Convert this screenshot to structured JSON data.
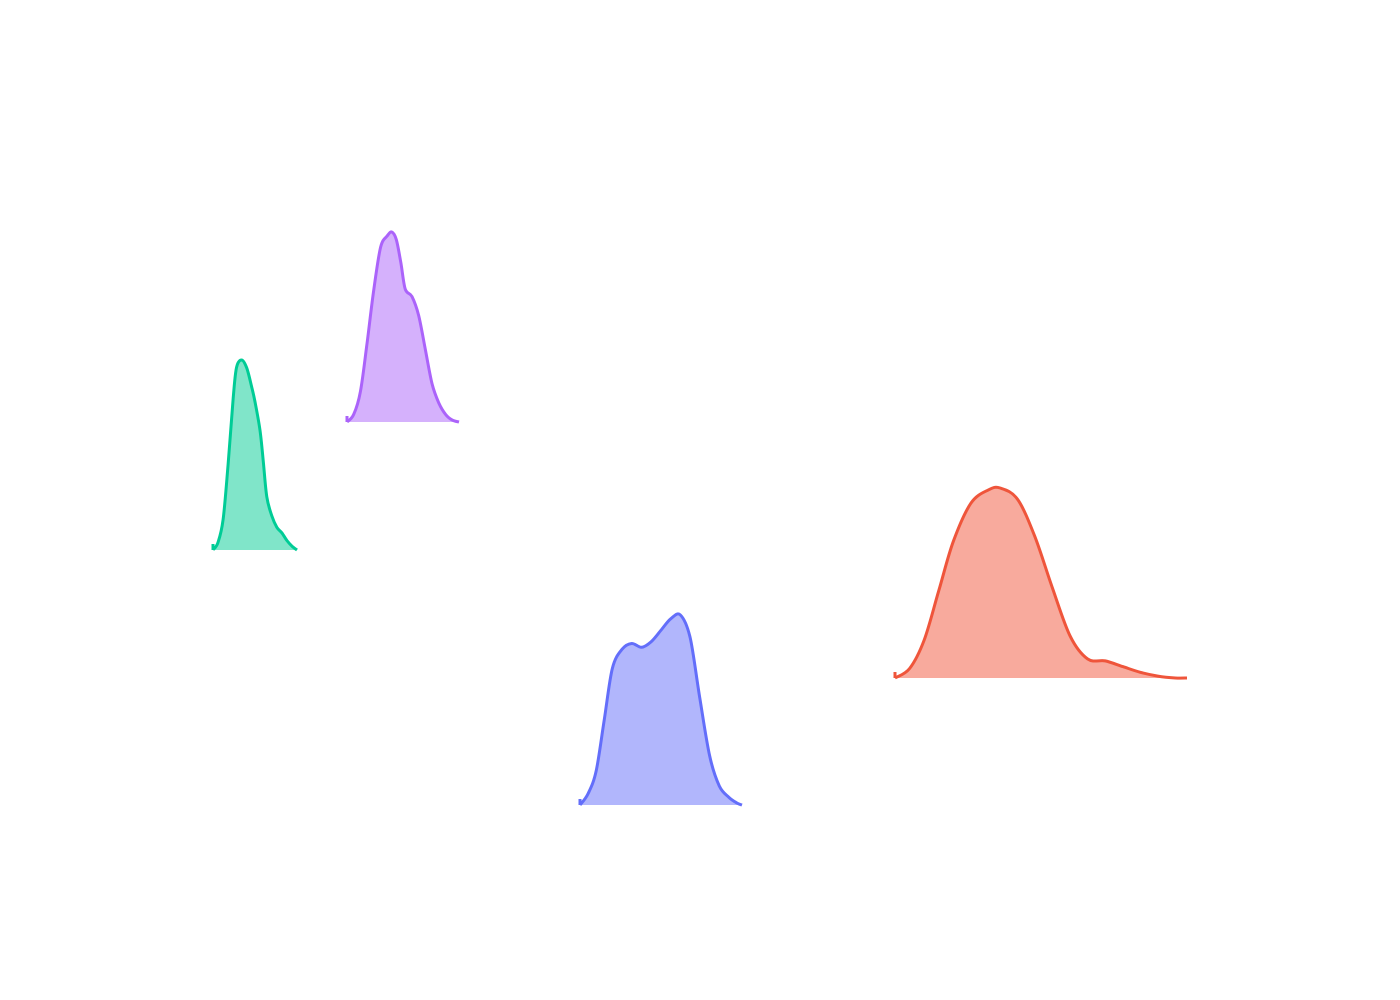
{
  "chart_data": {
    "type": "area",
    "title": "",
    "xlabel": "",
    "ylabel": "",
    "grid": false,
    "axes_visible": false,
    "series": [
      {
        "color": "#00cc96",
        "fill": "#80e5c9",
        "points": [
          [
            0.0,
            0.0
          ],
          [
            0.06,
            0.04
          ],
          [
            0.12,
            0.16
          ],
          [
            0.18,
            0.45
          ],
          [
            0.24,
            0.8
          ],
          [
            0.28,
            0.96
          ],
          [
            0.34,
            1.0
          ],
          [
            0.4,
            0.96
          ],
          [
            0.46,
            0.86
          ],
          [
            0.5,
            0.78
          ],
          [
            0.56,
            0.63
          ],
          [
            0.6,
            0.46
          ],
          [
            0.64,
            0.28
          ],
          [
            0.7,
            0.18
          ],
          [
            0.76,
            0.12
          ],
          [
            0.82,
            0.09
          ],
          [
            0.88,
            0.05
          ],
          [
            0.94,
            0.02
          ],
          [
            1.0,
            0.0
          ]
        ]
      },
      {
        "color": "#ab63fa",
        "fill": "#d5b1fc",
        "points": [
          [
            0.0,
            0.0
          ],
          [
            0.06,
            0.04
          ],
          [
            0.12,
            0.16
          ],
          [
            0.18,
            0.42
          ],
          [
            0.24,
            0.7
          ],
          [
            0.3,
            0.92
          ],
          [
            0.36,
            0.98
          ],
          [
            0.4,
            1.0
          ],
          [
            0.44,
            0.96
          ],
          [
            0.48,
            0.84
          ],
          [
            0.52,
            0.7
          ],
          [
            0.58,
            0.66
          ],
          [
            0.64,
            0.56
          ],
          [
            0.7,
            0.38
          ],
          [
            0.76,
            0.2
          ],
          [
            0.82,
            0.1
          ],
          [
            0.88,
            0.04
          ],
          [
            0.94,
            0.01
          ],
          [
            1.0,
            0.0
          ]
        ]
      },
      {
        "color": "#636efa",
        "fill": "#b1b6fc",
        "points": [
          [
            0.0,
            0.0
          ],
          [
            0.05,
            0.06
          ],
          [
            0.1,
            0.18
          ],
          [
            0.15,
            0.45
          ],
          [
            0.2,
            0.72
          ],
          [
            0.26,
            0.82
          ],
          [
            0.32,
            0.85
          ],
          [
            0.38,
            0.83
          ],
          [
            0.44,
            0.86
          ],
          [
            0.5,
            0.92
          ],
          [
            0.56,
            0.98
          ],
          [
            0.62,
            1.0
          ],
          [
            0.68,
            0.88
          ],
          [
            0.74,
            0.56
          ],
          [
            0.8,
            0.26
          ],
          [
            0.86,
            0.1
          ],
          [
            0.92,
            0.04
          ],
          [
            0.97,
            0.01
          ],
          [
            1.0,
            0.0
          ]
        ]
      },
      {
        "color": "#ef553b",
        "fill": "#f8aa9d",
        "points": [
          [
            0.0,
            0.0
          ],
          [
            0.05,
            0.05
          ],
          [
            0.1,
            0.2
          ],
          [
            0.15,
            0.46
          ],
          [
            0.2,
            0.72
          ],
          [
            0.26,
            0.92
          ],
          [
            0.32,
            0.99
          ],
          [
            0.36,
            1.0
          ],
          [
            0.42,
            0.94
          ],
          [
            0.48,
            0.74
          ],
          [
            0.54,
            0.47
          ],
          [
            0.6,
            0.22
          ],
          [
            0.66,
            0.1
          ],
          [
            0.72,
            0.09
          ],
          [
            0.78,
            0.06
          ],
          [
            0.84,
            0.03
          ],
          [
            0.9,
            0.01
          ],
          [
            0.96,
            0.0
          ],
          [
            1.0,
            0.0
          ]
        ]
      }
    ]
  }
}
